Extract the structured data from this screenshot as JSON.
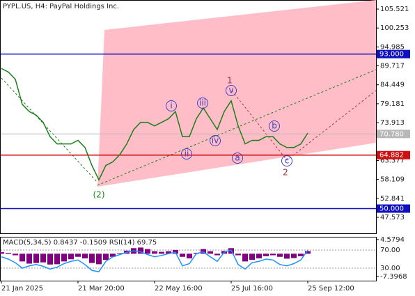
{
  "chart_data": [
    {
      "type": "line",
      "title": "PYPL.US, H4:  PayPal Holdings Inc.",
      "categories": [
        "21 Jan 2025",
        null,
        null,
        null,
        null,
        null,
        null,
        null,
        null,
        null,
        null,
        "21 Mar 20:00",
        null,
        null,
        null,
        null,
        null,
        null,
        null,
        null,
        null,
        null,
        "22 May 16:00",
        null,
        null,
        null,
        null,
        null,
        null,
        null,
        null,
        null,
        null,
        "25 Jul 16:00",
        null,
        null,
        null,
        null,
        null,
        null,
        null,
        null,
        null,
        null,
        "25 Sep 12:00"
      ],
      "series": [
        {
          "color": "#1a7f1a",
          "values": [
            89,
            88,
            86,
            79,
            77,
            76,
            74,
            70,
            68,
            68,
            68,
            69,
            67,
            62,
            58,
            62,
            63,
            65,
            68,
            72,
            74,
            74,
            73,
            74,
            75,
            77,
            70,
            70,
            75,
            78,
            75,
            72,
            77,
            80,
            73,
            68,
            69,
            69,
            70,
            70,
            68,
            67,
            67,
            68,
            71
          ]
        }
      ],
      "ylim": [
        43.12,
        107.85
      ],
      "yticks": [
        105.521,
        100.253,
        94.985,
        89.717,
        84.449,
        79.181,
        73.913,
        63.377,
        58.109,
        52.841,
        47.573
      ],
      "levels": [
        {
          "value": 93,
          "label": "93.000",
          "color": "#1010c0"
        },
        {
          "value": 70.78,
          "label": "70.780",
          "color": "#b8b8b8"
        },
        {
          "value": 64.882,
          "label": "64.882",
          "color": "#d01010"
        },
        {
          "value": 50,
          "label": "50.000",
          "color": "#1010c0"
        }
      ],
      "annotations": [
        "1",
        "2",
        "(2)",
        "i",
        "ii",
        "iii",
        "iv",
        "v",
        "a",
        "b",
        "c"
      ]
    },
    {
      "type": "bar",
      "title": "MACD(5,34,5) 0.8437 -0.1509 RSI(14) 69.75",
      "series": [
        {
          "name": "MACD",
          "color": "#800080",
          "axis": "y",
          "values": [
            0.5,
            0.3,
            -0.5,
            -2.5,
            -3.2,
            -3.0,
            -2.8,
            -3.5,
            -3.4,
            -2.5,
            -1.8,
            -1.0,
            -1.5,
            -3.0,
            -3.4,
            -2.0,
            -1.0,
            0.2,
            1.0,
            1.8,
            2.0,
            1.5,
            0.8,
            0.6,
            0.8,
            1.2,
            -1.0,
            -1.5,
            0.3,
            1.5,
            0.8,
            -0.5,
            0.9,
            1.8,
            -0.5,
            -2.5,
            -2.0,
            -1.5,
            -0.8,
            -0.5,
            -1.0,
            -1.6,
            -1.4,
            -0.8,
            0.8437
          ]
        },
        {
          "name": "RSI",
          "color": "#1e90ff",
          "axis": "y2",
          "values": [
            55,
            50,
            42,
            30,
            35,
            38,
            34,
            28,
            32,
            40,
            45,
            48,
            38,
            25,
            22,
            45,
            55,
            60,
            65,
            68,
            66,
            60,
            55,
            58,
            62,
            65,
            35,
            40,
            62,
            66,
            55,
            45,
            65,
            70,
            38,
            28,
            42,
            45,
            50,
            48,
            38,
            35,
            40,
            48,
            69.75
          ]
        }
      ],
      "ylim": [
        -8.72,
        5.245
      ],
      "yticks": [
        4.5794,
        -7.3968
      ],
      "y2lim": [
        2.3,
        97.7
      ],
      "y2ticks": [
        {
          "value": 70,
          "label": "70.00"
        },
        {
          "value": 30,
          "label": "30.00"
        }
      ]
    }
  ]
}
